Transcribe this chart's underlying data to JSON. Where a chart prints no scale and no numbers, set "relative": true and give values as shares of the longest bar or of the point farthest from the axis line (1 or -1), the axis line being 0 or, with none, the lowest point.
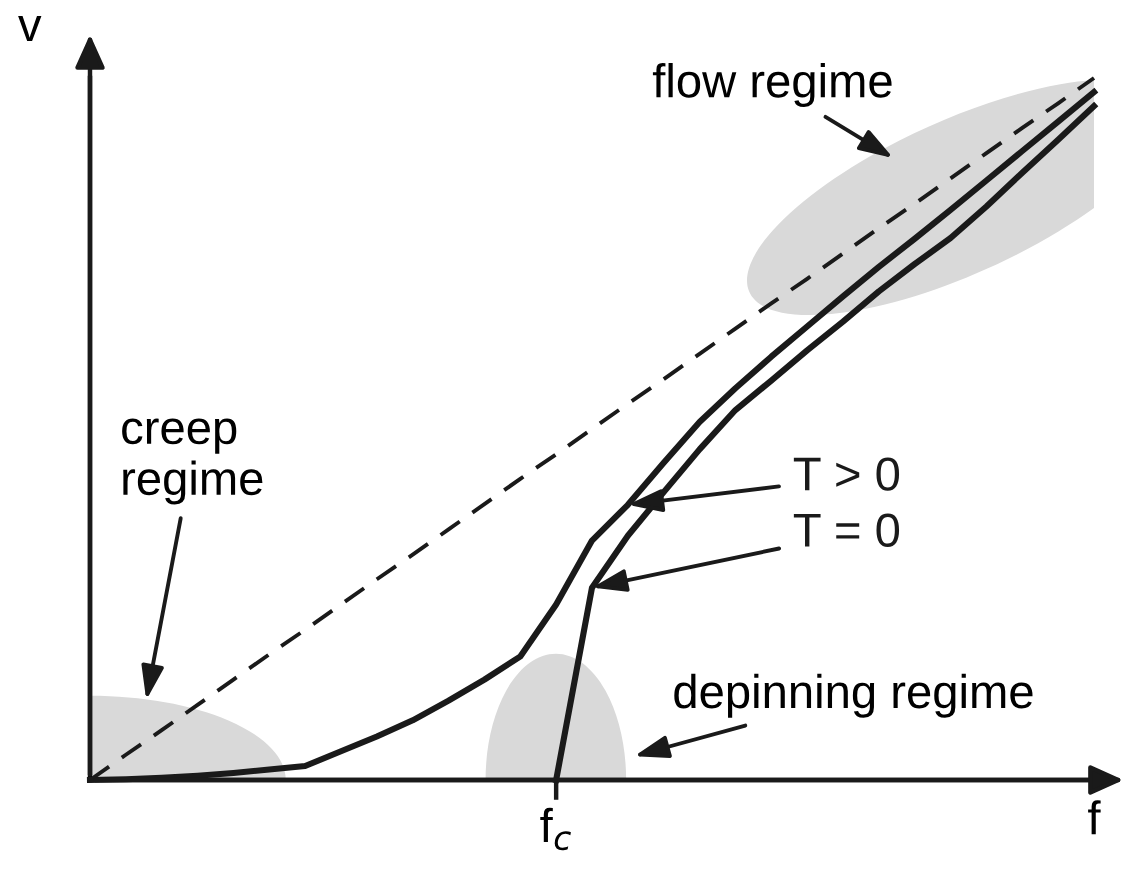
{
  "chart_data": {
    "type": "line",
    "relative": true,
    "xlabel": "f",
    "ylabel": "v",
    "categories": [
      null,
      null,
      null,
      null,
      null,
      null,
      null,
      null,
      null,
      null,
      null,
      null,
      null,
      null,
      null,
      null,
      null,
      null,
      null,
      null,
      null,
      null,
      null,
      null,
      null,
      null,
      null,
      null,
      null
    ],
    "series": [
      {
        "color": "#1a1a1a",
        "line_style": "dashed",
        "values": [
          0,
          0.036,
          0.071,
          0.107,
          0.143,
          0.179,
          0.214,
          0.25,
          0.286,
          0.321,
          0.357,
          0.393,
          0.429,
          0.464,
          0.5,
          0.536,
          0.571,
          0.607,
          0.643,
          0.679,
          0.714,
          0.75,
          0.786,
          0.821,
          0.857,
          0.893,
          0.929,
          0.964,
          1
        ]
      },
      {
        "name": "T > 0",
        "color": "#1a1a1a",
        "line_style": "solid",
        "values": [
          0,
          0.001,
          0.003,
          0.006,
          0.01,
          0.015,
          0.02,
          0.041,
          0.062,
          0.085,
          0.113,
          0.143,
          0.176,
          0.25,
          0.341,
          0.392,
          0.452,
          0.51,
          0.558,
          0.603,
          0.646,
          0.689,
          0.731,
          0.771,
          0.812,
          0.854,
          0.896,
          0.938,
          0.98
        ]
      },
      {
        "name": "T = 0",
        "color": "#1a1a1a",
        "line_style": "solid",
        "values": [
          null,
          null,
          null,
          null,
          null,
          null,
          null,
          null,
          null,
          null,
          null,
          null,
          null,
          0,
          0.274,
          0.348,
          0.41,
          0.471,
          0.527,
          0.569,
          0.612,
          0.653,
          0.696,
          0.735,
          0.772,
          0.817,
          0.865,
          0.912,
          0.96
        ]
      }
    ],
    "annotations": [
      "creep\nregime",
      "flow regime",
      "depinning regime",
      "f$_{c}$"
    ]
  }
}
